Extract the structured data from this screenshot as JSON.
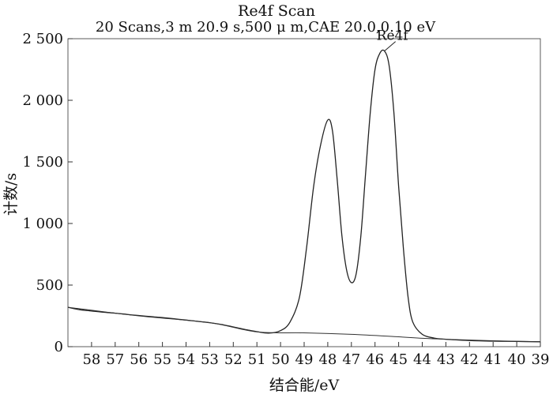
{
  "chart_data": {
    "type": "line",
    "title": "Re4f Scan",
    "subtitle": "20 Scans,3 m 20.9 s,500 μ m,CAE 20.0,0.10 eV",
    "xlabel": "结合能/eV",
    "ylabel": "计数/s",
    "x_reversed": true,
    "xlim": [
      59,
      39
    ],
    "ylim": [
      0,
      2500
    ],
    "x_ticks": [
      58,
      57,
      56,
      55,
      54,
      53,
      52,
      51,
      50,
      49,
      48,
      47,
      46,
      45,
      44,
      43,
      42,
      41,
      40,
      39
    ],
    "y_ticks": [
      0,
      500,
      1000,
      1500,
      2000,
      2500
    ],
    "y_tick_labels": [
      "0",
      "500",
      "1 000",
      "1 500",
      "2 000",
      "2 500"
    ],
    "grid": false,
    "annotations": [
      {
        "text": "Re4f",
        "x": 45.6,
        "y": 2400
      }
    ],
    "series": [
      {
        "role": "spectrum",
        "color": "#222222",
        "points": [
          [
            59.0,
            320
          ],
          [
            58.5,
            300
          ],
          [
            58.0,
            290
          ],
          [
            57.5,
            280
          ],
          [
            57.0,
            272
          ],
          [
            56.5,
            262
          ],
          [
            56.0,
            253
          ],
          [
            55.5,
            244
          ],
          [
            55.0,
            236
          ],
          [
            54.5,
            226
          ],
          [
            54.0,
            216
          ],
          [
            53.5,
            205
          ],
          [
            53.0,
            195
          ],
          [
            52.5,
            180
          ],
          [
            52.0,
            160
          ],
          [
            51.5,
            140
          ],
          [
            51.0,
            122
          ],
          [
            50.5,
            110
          ],
          [
            50.0,
            130
          ],
          [
            49.6,
            200
          ],
          [
            49.2,
            400
          ],
          [
            48.9,
            800
          ],
          [
            48.6,
            1300
          ],
          [
            48.3,
            1640
          ],
          [
            48.0,
            1840
          ],
          [
            47.8,
            1750
          ],
          [
            47.6,
            1350
          ],
          [
            47.4,
            900
          ],
          [
            47.2,
            620
          ],
          [
            47.0,
            520
          ],
          [
            46.8,
            590
          ],
          [
            46.6,
            900
          ],
          [
            46.4,
            1400
          ],
          [
            46.2,
            1900
          ],
          [
            46.0,
            2250
          ],
          [
            45.8,
            2380
          ],
          [
            45.6,
            2400
          ],
          [
            45.4,
            2280
          ],
          [
            45.2,
            1900
          ],
          [
            45.0,
            1300
          ],
          [
            44.8,
            800
          ],
          [
            44.6,
            400
          ],
          [
            44.4,
            200
          ],
          [
            44.0,
            100
          ],
          [
            43.5,
            70
          ],
          [
            43.0,
            60
          ],
          [
            42.0,
            50
          ],
          [
            41.0,
            45
          ],
          [
            40.0,
            42
          ],
          [
            39.0,
            40
          ]
        ]
      },
      {
        "role": "background",
        "color": "#333333",
        "points": [
          [
            59.0,
            320
          ],
          [
            56.0,
            250
          ],
          [
            53.0,
            195
          ],
          [
            51.0,
            120
          ],
          [
            49.0,
            112
          ],
          [
            47.0,
            100
          ],
          [
            45.0,
            80
          ],
          [
            44.0,
            68
          ],
          [
            43.0,
            60
          ],
          [
            41.0,
            48
          ],
          [
            39.0,
            40
          ]
        ]
      }
    ]
  }
}
